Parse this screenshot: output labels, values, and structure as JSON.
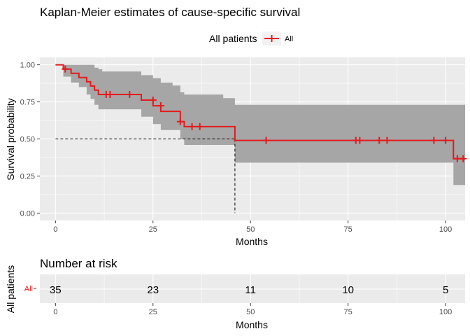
{
  "chart_data": [
    {
      "type": "line",
      "title": "Kaplan-Meier estimates of cause-specific survival",
      "xlabel": "Months",
      "ylabel": "Survival probability",
      "xlim": [
        -4,
        105
      ],
      "ylim": [
        -0.05,
        1.05
      ],
      "x_ticks": [
        0,
        25,
        50,
        75,
        100
      ],
      "y_ticks": [
        0.0,
        0.25,
        0.5,
        0.75,
        1.0
      ],
      "x_tick_labels": [
        "0",
        "25",
        "50",
        "75",
        "100"
      ],
      "y_tick_labels": [
        "0.00",
        "0.25",
        "0.50",
        "0.75",
        "1.00"
      ],
      "grid": true,
      "legend": {
        "title": "All patients",
        "position": "top",
        "entries": [
          "All"
        ]
      },
      "color": "#e41a1c",
      "series": [
        {
          "name": "All",
          "step": [
            [
              0,
              1.0
            ],
            [
              2,
              0.971
            ],
            [
              4,
              0.943
            ],
            [
              6,
              0.914
            ],
            [
              8,
              0.886
            ],
            [
              9,
              0.857
            ],
            [
              10,
              0.829
            ],
            [
              11,
              0.8
            ],
            [
              22,
              0.762
            ],
            [
              25,
              0.724
            ],
            [
              27,
              0.686
            ],
            [
              32,
              0.617
            ],
            [
              33,
              0.583
            ],
            [
              43,
              0.583
            ],
            [
              46,
              0.49
            ],
            [
              102,
              0.49
            ],
            [
              102,
              0.367
            ],
            [
              105,
              0.367
            ]
          ],
          "ci_upper": [
            [
              0,
              1.0
            ],
            [
              8,
              1.0
            ],
            [
              10,
              0.98
            ],
            [
              11,
              0.97
            ],
            [
              12,
              0.955
            ],
            [
              22,
              0.93
            ],
            [
              25,
              0.91
            ],
            [
              27,
              0.88
            ],
            [
              30,
              0.86
            ],
            [
              32,
              0.815
            ],
            [
              33,
              0.8
            ],
            [
              43,
              0.775
            ],
            [
              46,
              0.73
            ],
            [
              102,
              0.73
            ],
            [
              105,
              0.73
            ]
          ],
          "ci_lower": [
            [
              0,
              1.0
            ],
            [
              2,
              0.92
            ],
            [
              4,
              0.88
            ],
            [
              6,
              0.85
            ],
            [
              8,
              0.8
            ],
            [
              9,
              0.77
            ],
            [
              10,
              0.73
            ],
            [
              11,
              0.7
            ],
            [
              22,
              0.65
            ],
            [
              25,
              0.6
            ],
            [
              27,
              0.56
            ],
            [
              32,
              0.5
            ],
            [
              33,
              0.46
            ],
            [
              43,
              0.46
            ],
            [
              46,
              0.34
            ],
            [
              102,
              0.34
            ],
            [
              102,
              0.19
            ],
            [
              105,
              0.19
            ]
          ],
          "censored": [
            [
              2.5,
              0.971
            ],
            [
              13,
              0.8
            ],
            [
              14,
              0.8
            ],
            [
              19,
              0.8
            ],
            [
              25,
              0.762
            ],
            [
              27,
              0.724
            ],
            [
              32,
              0.617
            ],
            [
              35,
              0.583
            ],
            [
              37,
              0.583
            ],
            [
              54,
              0.49
            ],
            [
              77,
              0.49
            ],
            [
              78,
              0.49
            ],
            [
              83,
              0.49
            ],
            [
              85,
              0.49
            ],
            [
              97,
              0.49
            ],
            [
              100,
              0.49
            ],
            [
              103,
              0.367
            ],
            [
              104.5,
              0.367
            ]
          ]
        }
      ],
      "median": {
        "x": 46,
        "y": 0.5
      }
    },
    {
      "type": "table",
      "title": "Number at risk",
      "xlabel": "Months",
      "ylabel": "All patients",
      "strata": [
        "All"
      ],
      "x_ticks": [
        0,
        25,
        50,
        75,
        100
      ],
      "x_tick_labels": [
        "0",
        "25",
        "50",
        "75",
        "100"
      ],
      "values": [
        "35",
        "23",
        "11",
        "10",
        "5"
      ]
    }
  ]
}
